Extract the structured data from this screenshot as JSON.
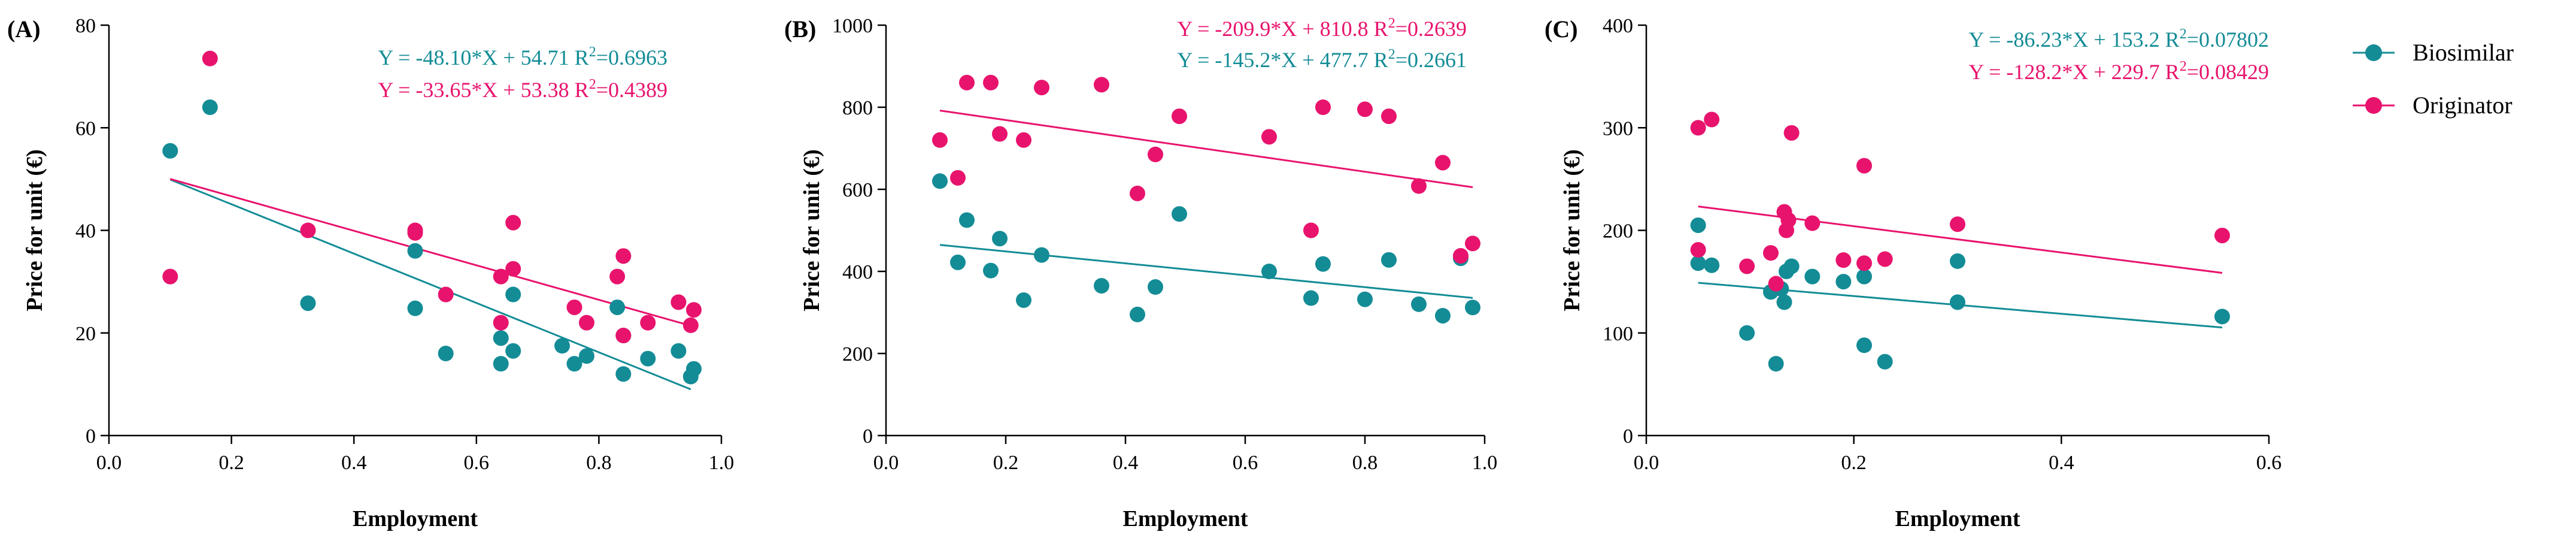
{
  "colors": {
    "biosimilar": "#138c96",
    "originator": "#e8136d",
    "axis": "#000000"
  },
  "legend": {
    "items": [
      {
        "label": "Biosimilar",
        "color": "#138c96"
      },
      {
        "label": "Originator",
        "color": "#e8136d"
      }
    ]
  },
  "chart_data": [
    {
      "type": "scatter",
      "panel_label": "(A)",
      "xlabel": "Employment",
      "ylabel": "Price for unit (€)",
      "xlim": [
        0.0,
        1.0
      ],
      "ylim": [
        0,
        80
      ],
      "x_ticks": [
        0.0,
        0.2,
        0.4,
        0.6,
        0.8,
        1.0
      ],
      "y_ticks": [
        0,
        20,
        40,
        60,
        80
      ],
      "x_tick_labels": [
        "0.0",
        "0.2",
        "0.4",
        "0.6",
        "0.8",
        "1.0"
      ],
      "y_tick_labels": [
        "0",
        "20",
        "40",
        "60",
        "80"
      ],
      "equations": [
        {
          "series": "Biosimilar",
          "fit": "Y = -48.10*X + 54.71",
          "r2_prefix": "R",
          "r2_value": "=0.6963"
        },
        {
          "series": "Originator",
          "fit": "Y = -33.65*X + 53.38",
          "r2_prefix": "R",
          "r2_value": "=0.4389"
        }
      ],
      "series": [
        {
          "name": "Biosimilar",
          "slope": -48.1,
          "intercept": 54.71,
          "fit_range": [
            0.1,
            0.95
          ],
          "points": [
            [
              0.1,
              55.5
            ],
            [
              0.165,
              64
            ],
            [
              0.325,
              25.8
            ],
            [
              0.5,
              36
            ],
            [
              0.5,
              24.8
            ],
            [
              0.55,
              16
            ],
            [
              0.64,
              19
            ],
            [
              0.64,
              14
            ],
            [
              0.66,
              27.5
            ],
            [
              0.66,
              16.5
            ],
            [
              0.74,
              17.5
            ],
            [
              0.76,
              14
            ],
            [
              0.78,
              15.5
            ],
            [
              0.83,
              25
            ],
            [
              0.84,
              19.5
            ],
            [
              0.84,
              12
            ],
            [
              0.88,
              15
            ],
            [
              0.93,
              16.5
            ],
            [
              0.95,
              11.5
            ],
            [
              0.955,
              13
            ]
          ]
        },
        {
          "name": "Originator",
          "slope": -33.65,
          "intercept": 53.38,
          "fit_range": [
            0.1,
            0.95
          ],
          "points": [
            [
              0.1,
              31
            ],
            [
              0.165,
              73.5
            ],
            [
              0.325,
              40
            ],
            [
              0.5,
              39.5
            ],
            [
              0.5,
              40
            ],
            [
              0.55,
              27.5
            ],
            [
              0.64,
              31
            ],
            [
              0.64,
              22
            ],
            [
              0.66,
              41.5
            ],
            [
              0.66,
              32.5
            ],
            [
              0.76,
              25
            ],
            [
              0.78,
              22
            ],
            [
              0.83,
              31
            ],
            [
              0.84,
              35
            ],
            [
              0.84,
              19.5
            ],
            [
              0.88,
              22
            ],
            [
              0.93,
              26
            ],
            [
              0.95,
              21.5
            ],
            [
              0.955,
              24.5
            ]
          ]
        }
      ]
    },
    {
      "type": "scatter",
      "panel_label": "(B)",
      "xlabel": "Employment",
      "ylabel": "Price for unit (€)",
      "xlim": [
        0.0,
        1.0
      ],
      "ylim": [
        0,
        1000
      ],
      "x_ticks": [
        0.0,
        0.2,
        0.4,
        0.6,
        0.8,
        1.0
      ],
      "y_ticks": [
        0,
        200,
        400,
        600,
        800,
        1000
      ],
      "x_tick_labels": [
        "0.0",
        "0.2",
        "0.4",
        "0.6",
        "0.8",
        "1.0"
      ],
      "y_tick_labels": [
        "0",
        "200",
        "400",
        "600",
        "800",
        "1000"
      ],
      "equations": [
        {
          "series": "Originator",
          "fit": "Y = -209.9*X + 810.8",
          "r2_prefix": "R",
          "r2_value": "=0.2639"
        },
        {
          "series": "Biosimilar",
          "fit": "Y = -145.2*X + 477.7",
          "r2_prefix": "R",
          "r2_value": "=0.2661"
        }
      ],
      "series": [
        {
          "name": "Biosimilar",
          "slope": -145.2,
          "intercept": 477.7,
          "fit_range": [
            0.09,
            0.98
          ],
          "points": [
            [
              0.09,
              620
            ],
            [
              0.12,
              422
            ],
            [
              0.135,
              525
            ],
            [
              0.175,
              402
            ],
            [
              0.19,
              480
            ],
            [
              0.23,
              330
            ],
            [
              0.26,
              440
            ],
            [
              0.36,
              365
            ],
            [
              0.42,
              295
            ],
            [
              0.45,
              362
            ],
            [
              0.49,
              540
            ],
            [
              0.64,
              400
            ],
            [
              0.71,
              335
            ],
            [
              0.73,
              418
            ],
            [
              0.8,
              332
            ],
            [
              0.84,
              428
            ],
            [
              0.89,
              320
            ],
            [
              0.93,
              292
            ],
            [
              0.96,
              432
            ],
            [
              0.98,
              312
            ]
          ]
        },
        {
          "name": "Originator",
          "slope": -209.9,
          "intercept": 810.8,
          "fit_range": [
            0.09,
            0.98
          ],
          "points": [
            [
              0.09,
              720
            ],
            [
              0.12,
              628
            ],
            [
              0.135,
              860
            ],
            [
              0.175,
              860
            ],
            [
              0.19,
              735
            ],
            [
              0.23,
              720
            ],
            [
              0.26,
              848
            ],
            [
              0.36,
              855
            ],
            [
              0.42,
              590
            ],
            [
              0.45,
              685
            ],
            [
              0.49,
              778
            ],
            [
              0.64,
              728
            ],
            [
              0.71,
              500
            ],
            [
              0.73,
              800
            ],
            [
              0.8,
              795
            ],
            [
              0.84,
              778
            ],
            [
              0.89,
              608
            ],
            [
              0.93,
              665
            ],
            [
              0.96,
              438
            ],
            [
              0.98,
              468
            ]
          ]
        }
      ]
    },
    {
      "type": "scatter",
      "panel_label": "(C)",
      "xlabel": "Employment",
      "ylabel": "Price for unit (€)",
      "xlim": [
        0.0,
        0.6
      ],
      "ylim": [
        0,
        400
      ],
      "x_ticks": [
        0.0,
        0.2,
        0.4,
        0.6
      ],
      "y_ticks": [
        0,
        100,
        200,
        300,
        400
      ],
      "x_tick_labels": [
        "0.0",
        "0.2",
        "0.4",
        "0.6"
      ],
      "y_tick_labels": [
        "0",
        "100",
        "200",
        "300",
        "400"
      ],
      "equations": [
        {
          "series": "Biosimilar",
          "fit": "Y = -86.23*X + 153.2",
          "r2_prefix": "R",
          "r2_value": "=0.07802"
        },
        {
          "series": "Originator",
          "fit": "Y = -128.2*X + 229.7",
          "r2_prefix": "R",
          "r2_value": "=0.08429"
        }
      ],
      "series": [
        {
          "name": "Biosimilar",
          "slope": -86.23,
          "intercept": 153.2,
          "fit_range": [
            0.05,
            0.555
          ],
          "points": [
            [
              0.05,
              205
            ],
            [
              0.05,
              168
            ],
            [
              0.063,
              166
            ],
            [
              0.097,
              100
            ],
            [
              0.12,
              140
            ],
            [
              0.125,
              70
            ],
            [
              0.13,
              143
            ],
            [
              0.133,
              130
            ],
            [
              0.135,
              160
            ],
            [
              0.14,
              165
            ],
            [
              0.16,
              155
            ],
            [
              0.19,
              150
            ],
            [
              0.21,
              155
            ],
            [
              0.21,
              88
            ],
            [
              0.23,
              72
            ],
            [
              0.3,
              170
            ],
            [
              0.3,
              130
            ],
            [
              0.555,
              116
            ]
          ]
        },
        {
          "name": "Originator",
          "slope": -128.2,
          "intercept": 229.7,
          "fit_range": [
            0.05,
            0.555
          ],
          "points": [
            [
              0.05,
              300
            ],
            [
              0.05,
              181
            ],
            [
              0.063,
              308
            ],
            [
              0.097,
              165
            ],
            [
              0.12,
              178
            ],
            [
              0.125,
              148
            ],
            [
              0.133,
              218
            ],
            [
              0.135,
              200
            ],
            [
              0.137,
              210
            ],
            [
              0.14,
              295
            ],
            [
              0.16,
              207
            ],
            [
              0.19,
              171
            ],
            [
              0.21,
              263
            ],
            [
              0.21,
              168
            ],
            [
              0.23,
              172
            ],
            [
              0.3,
              206
            ],
            [
              0.555,
              195
            ]
          ]
        }
      ]
    }
  ]
}
